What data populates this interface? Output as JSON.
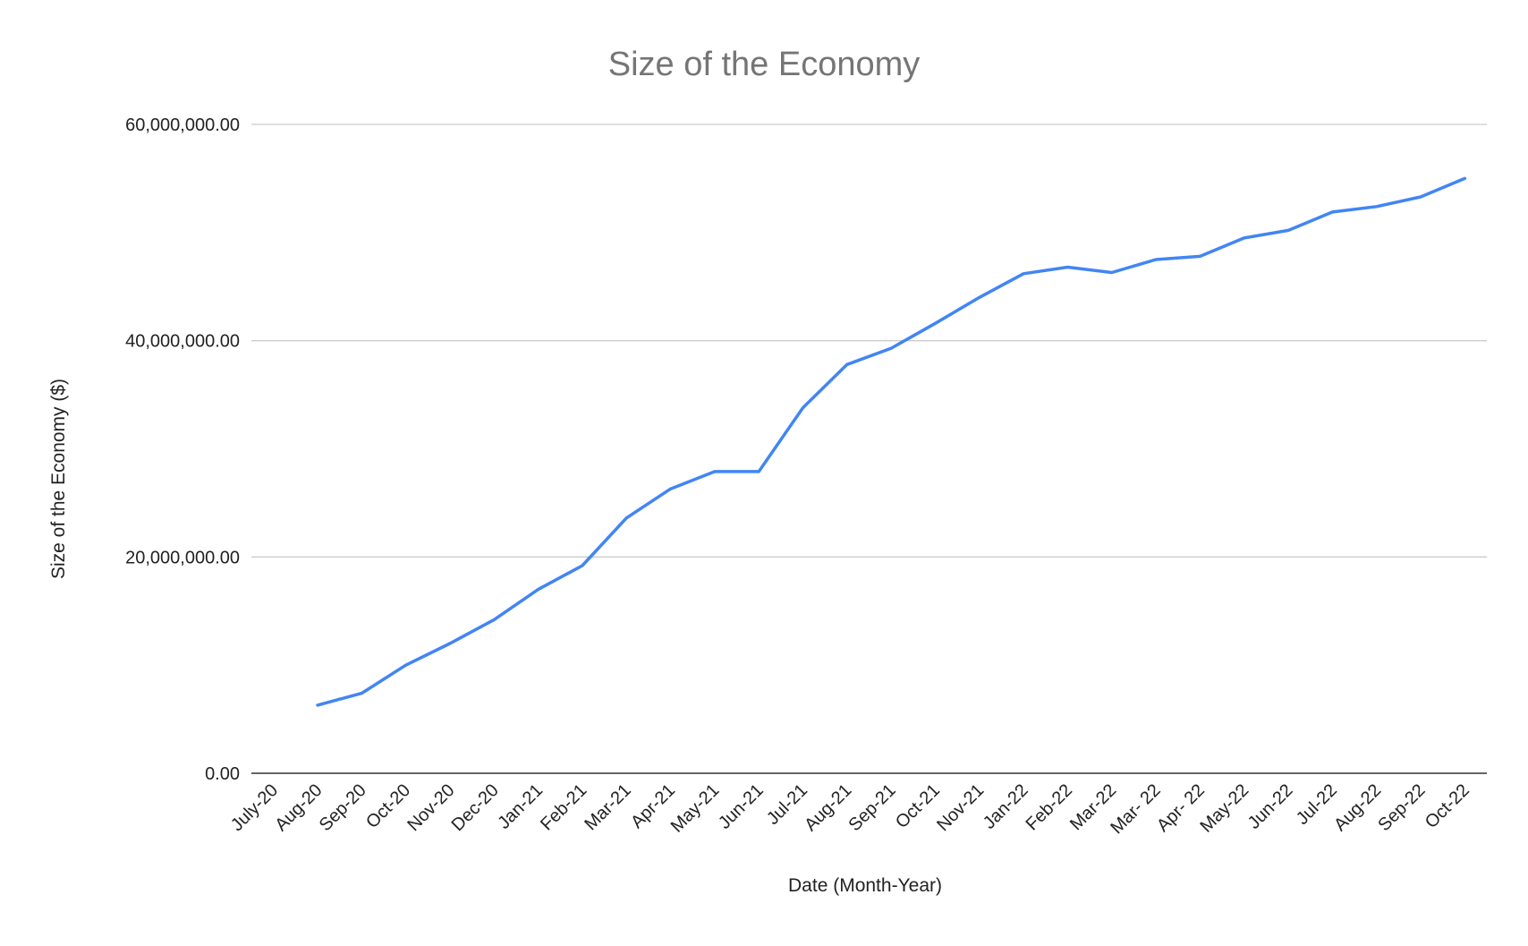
{
  "chart_data": {
    "type": "line",
    "title": "Size of the Economy",
    "xlabel": "Date (Month-Year)",
    "ylabel": "Size of the Economy ($)",
    "ylim": [
      0,
      60000000
    ],
    "yticks": [
      "0.00",
      "20,000,000.00",
      "40,000,000.00",
      "60,000,000.00"
    ],
    "yticks_values": [
      0,
      20000000,
      40000000,
      60000000
    ],
    "grid": true,
    "legend": "none",
    "categories": [
      "July-20",
      "Aug-20",
      "Sep-20",
      "Oct-20",
      "Nov-20",
      "Dec-20",
      "Jan-21",
      "Feb-21",
      "Mar-21",
      "Apr-21",
      "May-21",
      "Jun-21",
      "Jul-21",
      "Aug-21",
      "Sep-21",
      "Oct-21",
      "Nov-21",
      "Jan-22",
      "Feb-22",
      "Mar-22",
      "Mar- 22",
      "Apr- 22",
      "May-22",
      "Jun-22",
      "Jul-22",
      "Aug-22",
      "Sep-22",
      "Oct-22"
    ],
    "series": [
      {
        "color": "#4285f4",
        "values": [
          null,
          6300000,
          7400000,
          10000000,
          12000000,
          14200000,
          17000000,
          19200000,
          23600000,
          26300000,
          27900000,
          27900000,
          33800000,
          37800000,
          39300000,
          41600000,
          44000000,
          46200000,
          46800000,
          46300000,
          47500000,
          47800000,
          49500000,
          50200000,
          51900000,
          52400000,
          53300000,
          55000000
        ]
      }
    ]
  }
}
